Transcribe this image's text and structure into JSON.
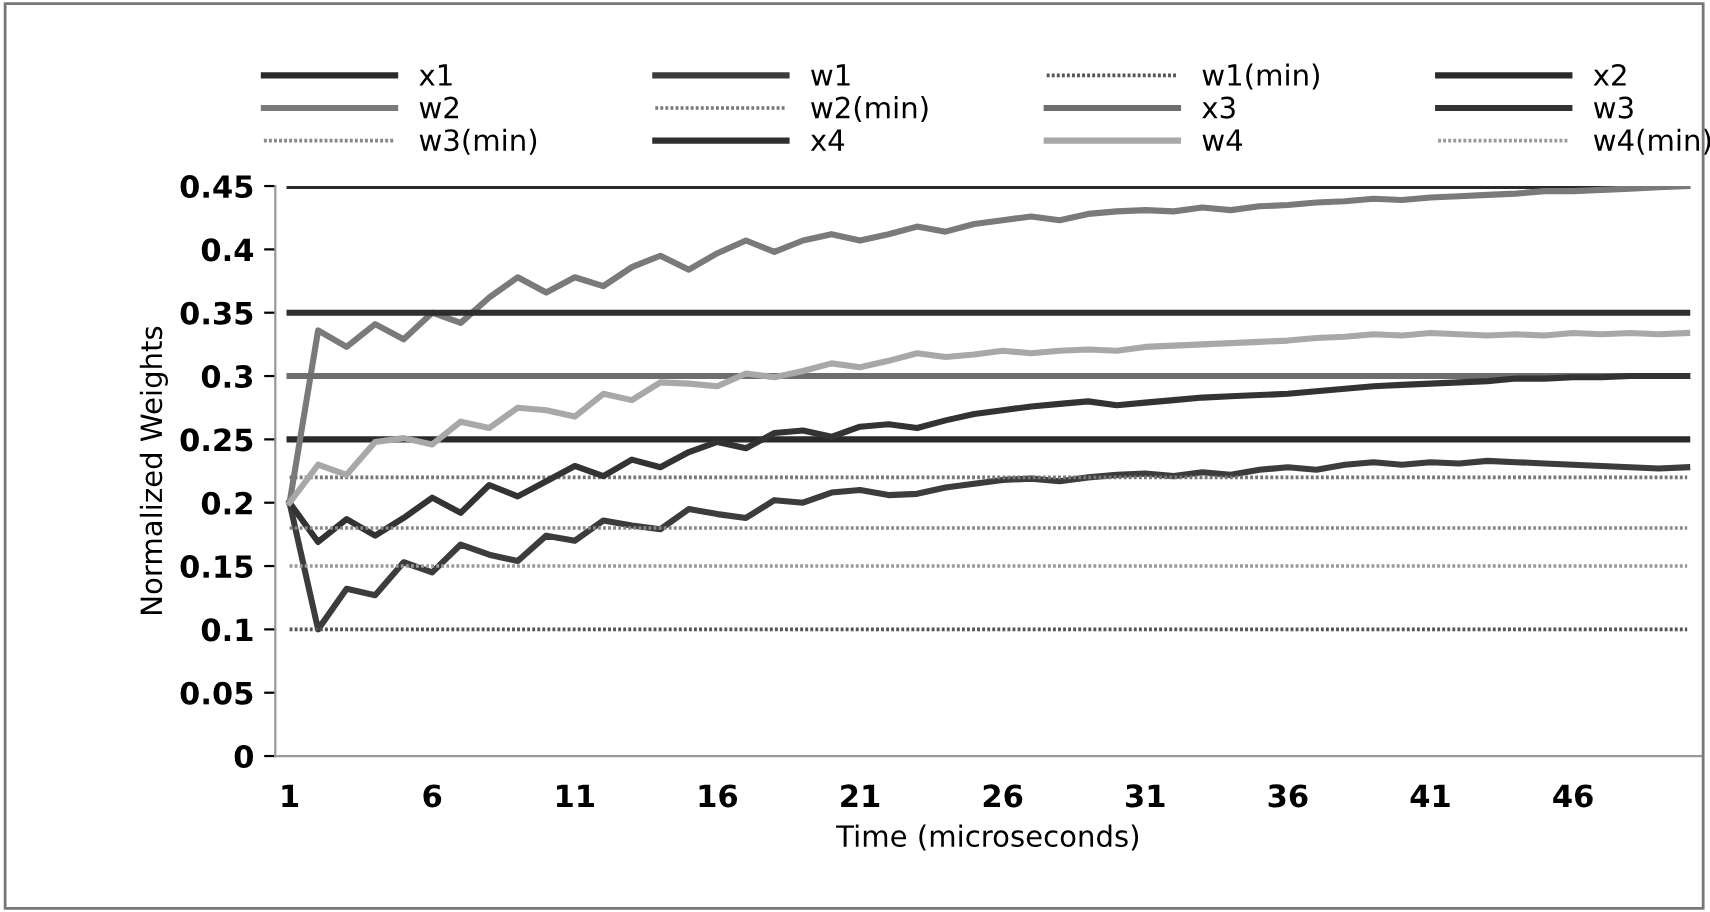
{
  "chart_data": {
    "type": "line",
    "xlabel": "Time (microseconds)",
    "ylabel": "Normalized Weights",
    "x": [
      1,
      2,
      3,
      4,
      5,
      6,
      7,
      8,
      9,
      10,
      11,
      12,
      13,
      14,
      15,
      16,
      17,
      18,
      19,
      20,
      21,
      22,
      23,
      24,
      25,
      26,
      27,
      28,
      29,
      30,
      31,
      32,
      33,
      34,
      35,
      36,
      37,
      38,
      39,
      40,
      41,
      42,
      43,
      44,
      45,
      46,
      47,
      48,
      49,
      50
    ],
    "xlim": [
      0.5,
      50.5
    ],
    "xticks": [
      1,
      6,
      11,
      16,
      21,
      26,
      31,
      36,
      41,
      46
    ],
    "ylim": [
      0,
      0.45
    ],
    "yticks": [
      0,
      0.05,
      0.1,
      0.15,
      0.2,
      0.25,
      0.3,
      0.35,
      0.4,
      0.45
    ],
    "legend": "top",
    "grid": false,
    "series": [
      {
        "name": "x1",
        "color": "#2a2a2a",
        "line_style": "solid",
        "values": [
          0.25,
          0.25,
          0.25,
          0.25,
          0.25,
          0.25,
          0.25,
          0.25,
          0.25,
          0.25,
          0.25,
          0.25,
          0.25,
          0.25,
          0.25,
          0.25,
          0.25,
          0.25,
          0.25,
          0.25,
          0.25,
          0.25,
          0.25,
          0.25,
          0.25,
          0.25,
          0.25,
          0.25,
          0.25,
          0.25,
          0.25,
          0.25,
          0.25,
          0.25,
          0.25,
          0.25,
          0.25,
          0.25,
          0.25,
          0.25,
          0.25,
          0.25,
          0.25,
          0.25,
          0.25,
          0.25,
          0.25,
          0.25,
          0.25,
          0.25
        ]
      },
      {
        "name": "w1",
        "color": "#3c3c3c",
        "line_style": "solid",
        "values": [
          0.2,
          0.1,
          0.132,
          0.127,
          0.153,
          0.145,
          0.167,
          0.159,
          0.154,
          0.174,
          0.17,
          0.186,
          0.182,
          0.179,
          0.195,
          0.191,
          0.188,
          0.202,
          0.2,
          0.208,
          0.21,
          0.206,
          0.207,
          0.212,
          0.215,
          0.218,
          0.219,
          0.217,
          0.22,
          0.222,
          0.223,
          0.221,
          0.224,
          0.222,
          0.226,
          0.228,
          0.226,
          0.23,
          0.232,
          0.23,
          0.232,
          0.231,
          0.233,
          0.232,
          0.231,
          0.23,
          0.229,
          0.228,
          0.227,
          0.228
        ]
      },
      {
        "name": "w1(min)",
        "color": "#555555",
        "line_style": "dotted",
        "values": [
          0.1,
          0.1,
          0.1,
          0.1,
          0.1,
          0.1,
          0.1,
          0.1,
          0.1,
          0.1,
          0.1,
          0.1,
          0.1,
          0.1,
          0.1,
          0.1,
          0.1,
          0.1,
          0.1,
          0.1,
          0.1,
          0.1,
          0.1,
          0.1,
          0.1,
          0.1,
          0.1,
          0.1,
          0.1,
          0.1,
          0.1,
          0.1,
          0.1,
          0.1,
          0.1,
          0.1,
          0.1,
          0.1,
          0.1,
          0.1,
          0.1,
          0.1,
          0.1,
          0.1,
          0.1,
          0.1,
          0.1,
          0.1,
          0.1,
          0.1
        ]
      },
      {
        "name": "x2",
        "color": "#2a2a2a",
        "line_style": "solid",
        "values": [
          0.45,
          0.45,
          0.45,
          0.45,
          0.45,
          0.45,
          0.45,
          0.45,
          0.45,
          0.45,
          0.45,
          0.45,
          0.45,
          0.45,
          0.45,
          0.45,
          0.45,
          0.45,
          0.45,
          0.45,
          0.45,
          0.45,
          0.45,
          0.45,
          0.45,
          0.45,
          0.45,
          0.45,
          0.45,
          0.45,
          0.45,
          0.45,
          0.45,
          0.45,
          0.45,
          0.45,
          0.45,
          0.45,
          0.45,
          0.45,
          0.45,
          0.45,
          0.45,
          0.45,
          0.45,
          0.45,
          0.45,
          0.45,
          0.45,
          0.45
        ]
      },
      {
        "name": "w2",
        "color": "#7a7a7a",
        "line_style": "solid",
        "values": [
          0.2,
          0.336,
          0.323,
          0.341,
          0.329,
          0.35,
          0.342,
          0.362,
          0.378,
          0.366,
          0.378,
          0.371,
          0.386,
          0.395,
          0.384,
          0.397,
          0.407,
          0.398,
          0.407,
          0.412,
          0.407,
          0.412,
          0.418,
          0.414,
          0.42,
          0.423,
          0.426,
          0.423,
          0.428,
          0.43,
          0.431,
          0.43,
          0.433,
          0.431,
          0.434,
          0.435,
          0.437,
          0.438,
          0.44,
          0.439,
          0.441,
          0.442,
          0.443,
          0.444,
          0.446,
          0.446,
          0.447,
          0.448,
          0.449,
          0.45
        ]
      },
      {
        "name": "w2(min)",
        "color": "#777777",
        "line_style": "dotted",
        "values": [
          0.22,
          0.22,
          0.22,
          0.22,
          0.22,
          0.22,
          0.22,
          0.22,
          0.22,
          0.22,
          0.22,
          0.22,
          0.22,
          0.22,
          0.22,
          0.22,
          0.22,
          0.22,
          0.22,
          0.22,
          0.22,
          0.22,
          0.22,
          0.22,
          0.22,
          0.22,
          0.22,
          0.22,
          0.22,
          0.22,
          0.22,
          0.22,
          0.22,
          0.22,
          0.22,
          0.22,
          0.22,
          0.22,
          0.22,
          0.22,
          0.22,
          0.22,
          0.22,
          0.22,
          0.22,
          0.22,
          0.22,
          0.22,
          0.22,
          0.22
        ]
      },
      {
        "name": "x3",
        "color": "#6e6e6e",
        "line_style": "solid",
        "values": [
          0.3,
          0.3,
          0.3,
          0.3,
          0.3,
          0.3,
          0.3,
          0.3,
          0.3,
          0.3,
          0.3,
          0.3,
          0.3,
          0.3,
          0.3,
          0.3,
          0.3,
          0.3,
          0.3,
          0.3,
          0.3,
          0.3,
          0.3,
          0.3,
          0.3,
          0.3,
          0.3,
          0.3,
          0.3,
          0.3,
          0.3,
          0.3,
          0.3,
          0.3,
          0.3,
          0.3,
          0.3,
          0.3,
          0.3,
          0.3,
          0.3,
          0.3,
          0.3,
          0.3,
          0.3,
          0.3,
          0.3,
          0.3,
          0.3,
          0.3
        ]
      },
      {
        "name": "w3",
        "color": "#333333",
        "line_style": "solid",
        "values": [
          0.2,
          0.169,
          0.187,
          0.174,
          0.188,
          0.204,
          0.192,
          0.214,
          0.205,
          0.217,
          0.229,
          0.221,
          0.234,
          0.228,
          0.24,
          0.248,
          0.243,
          0.255,
          0.257,
          0.252,
          0.26,
          0.262,
          0.259,
          0.265,
          0.27,
          0.273,
          0.276,
          0.278,
          0.28,
          0.277,
          0.279,
          0.281,
          0.283,
          0.284,
          0.285,
          0.286,
          0.288,
          0.29,
          0.292,
          0.293,
          0.294,
          0.295,
          0.296,
          0.298,
          0.298,
          0.299,
          0.299,
          0.3,
          0.3,
          0.3
        ]
      },
      {
        "name": "w3(min)",
        "color": "#888888",
        "line_style": "dotted",
        "values": [
          0.18,
          0.18,
          0.18,
          0.18,
          0.18,
          0.18,
          0.18,
          0.18,
          0.18,
          0.18,
          0.18,
          0.18,
          0.18,
          0.18,
          0.18,
          0.18,
          0.18,
          0.18,
          0.18,
          0.18,
          0.18,
          0.18,
          0.18,
          0.18,
          0.18,
          0.18,
          0.18,
          0.18,
          0.18,
          0.18,
          0.18,
          0.18,
          0.18,
          0.18,
          0.18,
          0.18,
          0.18,
          0.18,
          0.18,
          0.18,
          0.18,
          0.18,
          0.18,
          0.18,
          0.18,
          0.18,
          0.18,
          0.18,
          0.18,
          0.18
        ]
      },
      {
        "name": "x4",
        "color": "#2e2e2e",
        "line_style": "solid",
        "values": [
          0.35,
          0.35,
          0.35,
          0.35,
          0.35,
          0.35,
          0.35,
          0.35,
          0.35,
          0.35,
          0.35,
          0.35,
          0.35,
          0.35,
          0.35,
          0.35,
          0.35,
          0.35,
          0.35,
          0.35,
          0.35,
          0.35,
          0.35,
          0.35,
          0.35,
          0.35,
          0.35,
          0.35,
          0.35,
          0.35,
          0.35,
          0.35,
          0.35,
          0.35,
          0.35,
          0.35,
          0.35,
          0.35,
          0.35,
          0.35,
          0.35,
          0.35,
          0.35,
          0.35,
          0.35,
          0.35,
          0.35,
          0.35,
          0.35,
          0.35
        ]
      },
      {
        "name": "w4",
        "color": "#a8a8a8",
        "line_style": "solid",
        "values": [
          0.2,
          0.23,
          0.222,
          0.248,
          0.251,
          0.246,
          0.264,
          0.259,
          0.275,
          0.273,
          0.268,
          0.286,
          0.281,
          0.295,
          0.294,
          0.292,
          0.302,
          0.299,
          0.304,
          0.31,
          0.307,
          0.312,
          0.318,
          0.315,
          0.317,
          0.32,
          0.318,
          0.32,
          0.321,
          0.32,
          0.323,
          0.324,
          0.325,
          0.326,
          0.327,
          0.328,
          0.33,
          0.331,
          0.333,
          0.332,
          0.334,
          0.333,
          0.332,
          0.333,
          0.332,
          0.334,
          0.333,
          0.334,
          0.333,
          0.334
        ]
      },
      {
        "name": "w4(min)",
        "color": "#999999",
        "line_style": "dotted",
        "values": [
          0.15,
          0.15,
          0.15,
          0.15,
          0.15,
          0.15,
          0.15,
          0.15,
          0.15,
          0.15,
          0.15,
          0.15,
          0.15,
          0.15,
          0.15,
          0.15,
          0.15,
          0.15,
          0.15,
          0.15,
          0.15,
          0.15,
          0.15,
          0.15,
          0.15,
          0.15,
          0.15,
          0.15,
          0.15,
          0.15,
          0.15,
          0.15,
          0.15,
          0.15,
          0.15,
          0.15,
          0.15,
          0.15,
          0.15,
          0.15,
          0.15,
          0.15,
          0.15,
          0.15,
          0.15,
          0.15,
          0.15,
          0.15,
          0.15,
          0.15
        ]
      }
    ]
  }
}
